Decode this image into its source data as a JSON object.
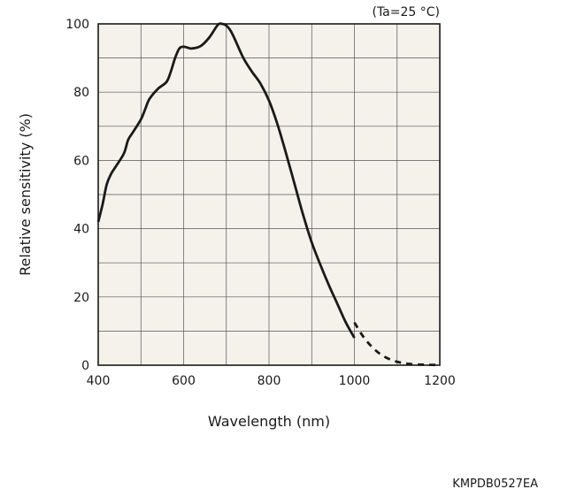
{
  "chart_data": {
    "type": "line",
    "title": "",
    "xlabel": "Wavelength (nm)",
    "ylabel": "Relative sensitivity (%)",
    "annotation": "(Ta=25 °C)",
    "figure_code": "KMPDB0527EA",
    "xlim": [
      400,
      1200
    ],
    "ylim": [
      0,
      100
    ],
    "xticks": [
      400,
      600,
      800,
      1000,
      1200
    ],
    "yticks": [
      0,
      20,
      40,
      60,
      80,
      100
    ],
    "grid": true,
    "grid_x_step": 100,
    "grid_y_step": 10,
    "plot_background": "#f4f2ea",
    "line_color": "#1a1a1a",
    "series": [
      {
        "style": "solid",
        "x": [
          400,
          410,
          420,
          430,
          440,
          460,
          470,
          480,
          500,
          510,
          520,
          540,
          560,
          570,
          580,
          590,
          600,
          610,
          620,
          640,
          660,
          680,
          690,
          700,
          710,
          720,
          740,
          760,
          780,
          800,
          820,
          840,
          860,
          880,
          900,
          920,
          940,
          960,
          980,
          1000
        ],
        "y": [
          42,
          47,
          53,
          56,
          58,
          62,
          66,
          68,
          72,
          75,
          78,
          81,
          83,
          86,
          90,
          92.8,
          93.3,
          93,
          92.8,
          93.5,
          96,
          99.7,
          100,
          99.5,
          98,
          95.5,
          90,
          86,
          82.5,
          77.5,
          70.5,
          62,
          53,
          44,
          36,
          29.5,
          23.5,
          18,
          12.5,
          8
        ]
      },
      {
        "style": "dashed",
        "x": [
          1000,
          1020,
          1040,
          1060,
          1080,
          1100,
          1120,
          1140,
          1160,
          1180,
          1200
        ],
        "y": [
          12.5,
          8.5,
          5.5,
          3.3,
          1.9,
          1.0,
          0.5,
          0.25,
          0.15,
          0.1,
          0.05
        ]
      }
    ]
  }
}
